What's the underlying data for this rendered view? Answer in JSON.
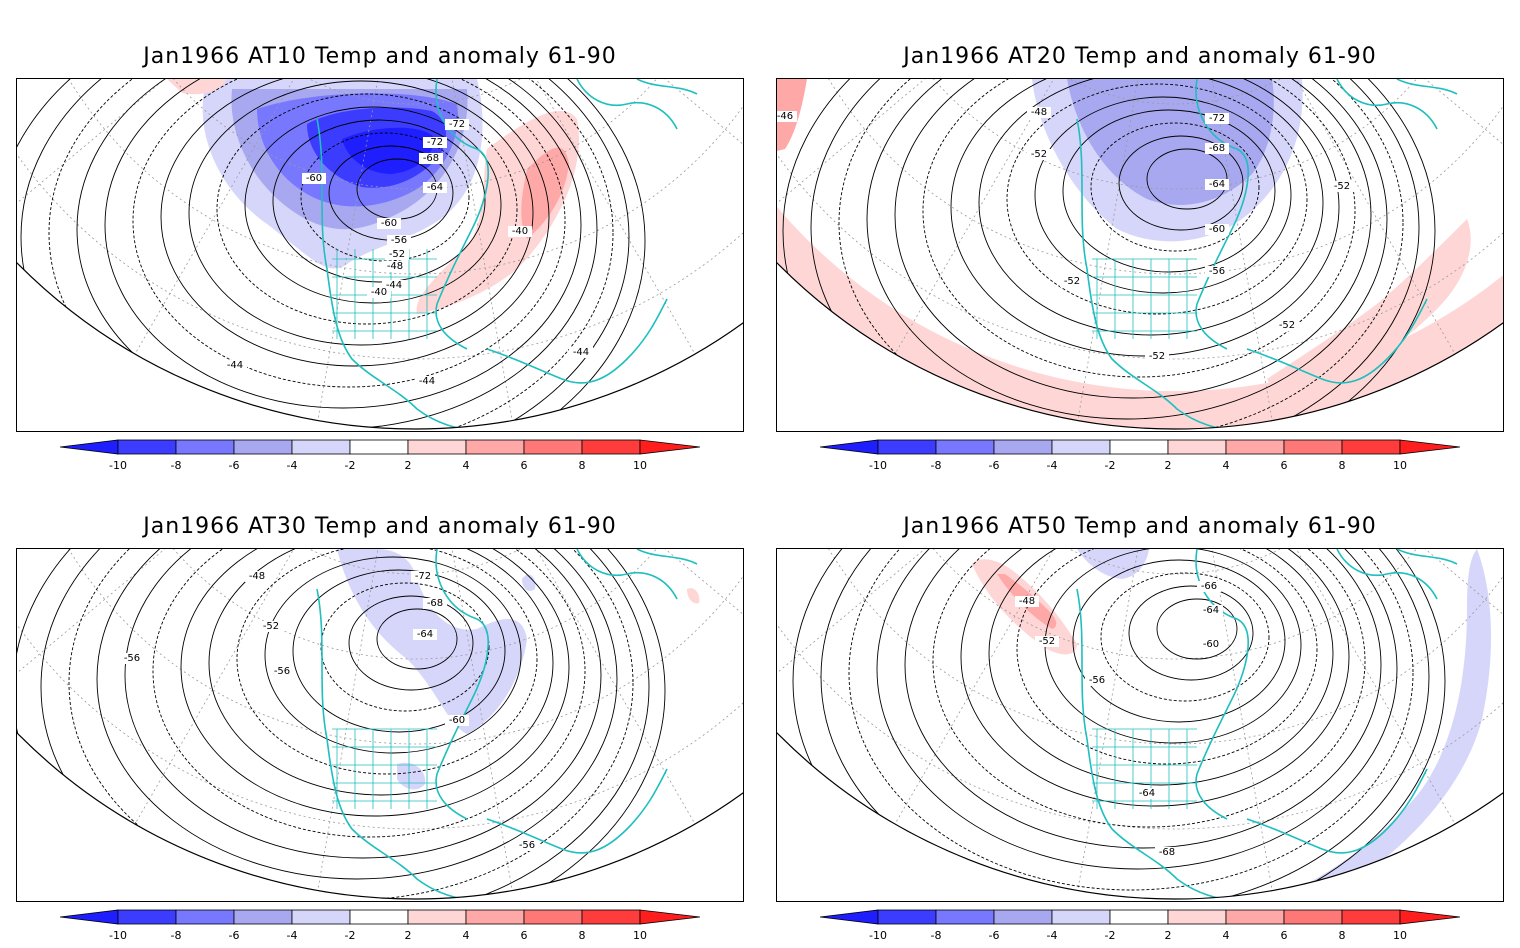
{
  "panels": [
    {
      "title": "Jan1966 AT10 Temp and anomaly 61-90",
      "contour_labels": [
        "-72",
        "-72",
        "-68",
        "-64",
        "-60",
        "-60",
        "-56",
        "-52",
        "-48",
        "-44",
        "-40",
        "-40",
        "-44",
        "-44",
        "-44"
      ],
      "anomaly": "cold-north"
    },
    {
      "title": "Jan1966 AT20 Temp and anomaly 61-90",
      "contour_labels": [
        "-48",
        "-52",
        "-72",
        "-68",
        "-64",
        "-60",
        "-56",
        "-52",
        "-52",
        "-52",
        "-52",
        "-46"
      ],
      "anomaly": "cold-center-warm-ring"
    },
    {
      "title": "Jan1966 AT30 Temp and anomaly 61-90",
      "contour_labels": [
        "-48",
        "-52",
        "-56",
        "-56",
        "-72",
        "-68",
        "-64",
        "-60",
        "-56"
      ],
      "anomaly": "weak-cold"
    },
    {
      "title": "Jan1966 AT50 Temp and anomaly 61-90",
      "contour_labels": [
        "-48",
        "-52",
        "-66",
        "-64",
        "-60",
        "-56",
        "-64",
        "-68"
      ],
      "anomaly": "warm-north-cold-east"
    }
  ],
  "colorbar": {
    "ticks": [
      "-10",
      "-8",
      "-6",
      "-4",
      "-2",
      "2",
      "4",
      "6",
      "8",
      "10"
    ],
    "colors": [
      "#1e1eff",
      "#3c3cff",
      "#7878ff",
      "#a8a8f0",
      "#d6d6fa",
      "#ffffff",
      "#ffd6d6",
      "#ffa8a8",
      "#ff7878",
      "#ff3c3c",
      "#ff1e1e"
    ]
  }
}
